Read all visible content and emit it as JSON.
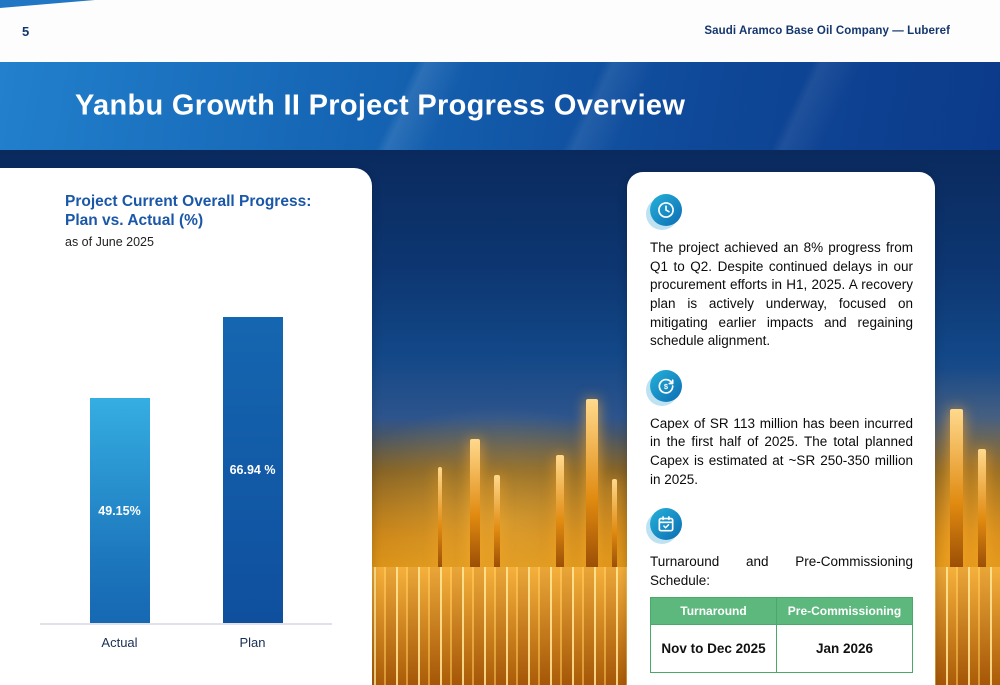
{
  "page": {
    "number": "5",
    "company": "Saudi Aramco Base Oil Company — Luberef",
    "title": "Yanbu Growth II Project Progress Overview"
  },
  "chart_card": {
    "title_line1": "Project Current Overall Progress:",
    "title_line2": "Plan vs. Actual (%)",
    "subtitle": "as of June 2025"
  },
  "chart_data": {
    "type": "bar",
    "title": "Project Current Overall Progress: Plan vs. Actual (%)",
    "subtitle": "as of June 2025",
    "categories": [
      "Actual",
      "Plan"
    ],
    "values": [
      49.15,
      66.94
    ],
    "value_labels": [
      "49.15%",
      "66.94 %"
    ],
    "ylim": [
      0,
      75
    ],
    "grid": false,
    "legend": "none",
    "bar_colors": [
      "#2aa3dc",
      "#1258a7"
    ]
  },
  "info_card": {
    "sections": [
      {
        "icon": "clock-icon",
        "text": "The project achieved an 8% progress from Q1 to Q2. Despite continued delays in our procurement efforts in H1, 2025. A recovery plan is actively underway, focused on mitigating earlier impacts and regaining schedule alignment."
      },
      {
        "icon": "capex-coin-icon",
        "text": "Capex of SR 113 million has been incurred in the first half of 2025. The total planned Capex is estimated at ~SR 250-350 million in 2025."
      },
      {
        "icon": "calendar-check-icon",
        "text": "Turnaround and Pre-Commissioning Schedule:"
      }
    ],
    "table": {
      "headers": [
        "Turnaround",
        "Pre-Commissioning"
      ],
      "rows": [
        [
          "Nov to Dec 2025",
          "Jan 2026"
        ]
      ]
    }
  },
  "colors": {
    "band_blue_start": "#2280cc",
    "band_blue_end": "#0c3a8a",
    "navy_text": "#14366e",
    "chart_title_blue": "#1a57a8",
    "bar_actual_blue": "#2aa3dc",
    "bar_plan_blue": "#1258a7",
    "icon_blue": "#0d6cb3",
    "table_green": "#5db87d",
    "table_border_green": "#4aa968"
  }
}
